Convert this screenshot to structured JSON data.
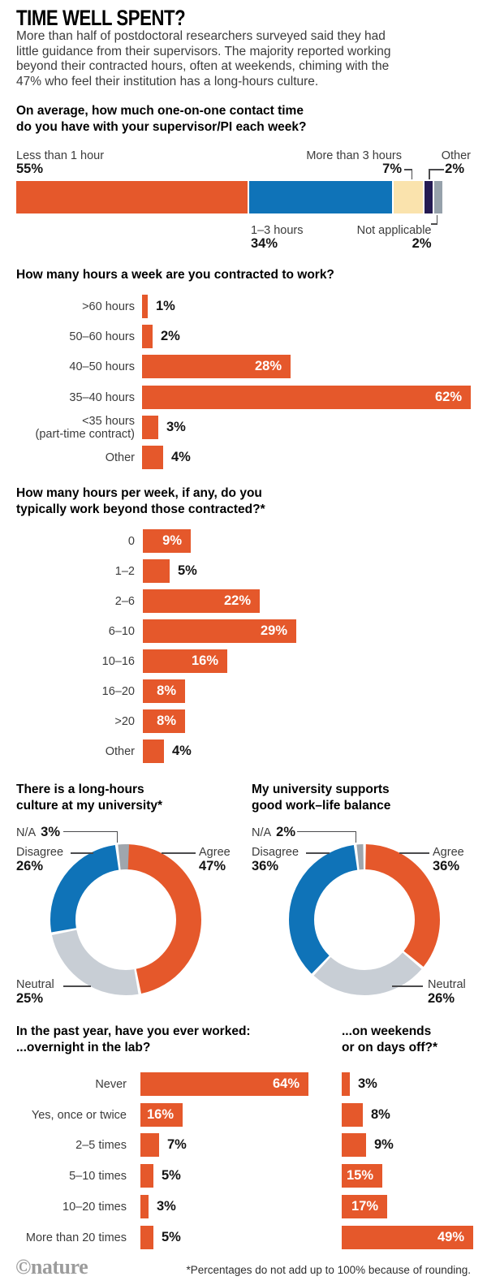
{
  "page": {
    "title": "TIME WELL SPENT?",
    "intro": "More than half of postdoctoral researchers surveyed said they had\nlittle guidance from their supervisors. The majority reported working\nbeyond their contracted hours, often at weekends, chiming with the\n47% who feel their institution has a long-hours culture.",
    "footnote": "*Percentages do not add up to 100% because of rounding.",
    "credit": "©nature"
  },
  "palette": {
    "orange": "#E5582B",
    "blue": "#0F73B8",
    "cream": "#FAE3AD",
    "navy": "#241A52",
    "slate": "#96A1AB",
    "neutral": "#C8CED5",
    "na": "#9FA6AD",
    "text_dark": "#141414",
    "body_text": "#3C3C3C",
    "connector_line": "#4B4B4D",
    "logo_gray": "#9C9C9C",
    "bar_value_inside": "#FFFFFF"
  },
  "chart_data": [
    {
      "id": "contact_time",
      "type": "stacked_bar",
      "title": "On average, how much one-on-one contact time\ndo you have with your supervisor/PI each week?",
      "categories": [
        "Less than 1 hour",
        "1–3 hours",
        "More than 3 hours",
        "Other",
        "Not applicable"
      ],
      "values": [
        55,
        34,
        7,
        2,
        2
      ],
      "pct_labels": [
        "55%",
        "34%",
        "7%",
        "2%",
        "2%"
      ],
      "color_keys": [
        "orange",
        "blue",
        "cream",
        "navy",
        "slate"
      ],
      "unit": "%",
      "xlim": [
        0,
        100
      ],
      "grid": false,
      "legend_position": "callouts"
    },
    {
      "id": "contracted",
      "type": "bar",
      "title": "How many hours a week are you contracted to work?",
      "categories": [
        ">60 hours",
        "50–60 hours",
        "40–50 hours",
        "35–40 hours",
        "<35 hours\n(part-time contract)",
        "Other"
      ],
      "values": [
        1,
        2,
        28,
        62,
        3,
        4
      ],
      "unit": "%",
      "grid": false,
      "value_labels_shown": true
    },
    {
      "id": "beyond",
      "type": "bar",
      "title": "How many hours per week, if any, do you\ntypically work beyond those contracted?*",
      "categories": [
        "0",
        "1–2",
        "2–6",
        "6–10",
        "10–16",
        "16–20",
        ">20",
        "Other"
      ],
      "values": [
        9,
        5,
        22,
        29,
        16,
        8,
        8,
        4
      ],
      "unit": "%",
      "grid": false,
      "value_labels_shown": true
    },
    {
      "id": "culture",
      "type": "pie",
      "title": "There is a long-hours\nculture at my university*",
      "categories": [
        "Agree",
        "Neutral",
        "Disagree",
        "N/A"
      ],
      "values": [
        47,
        25,
        26,
        3
      ],
      "pct_labels": [
        "47%",
        "25%",
        "26%",
        "3%"
      ],
      "color_keys": [
        "orange",
        "neutral",
        "blue",
        "na"
      ],
      "donut": true,
      "start_angle": "top",
      "direction": "clockwise",
      "legend_position": "callouts"
    },
    {
      "id": "balance",
      "type": "pie",
      "title": "My university supports\ngood work–life balance",
      "categories": [
        "Agree",
        "Neutral",
        "Disagree",
        "N/A"
      ],
      "values": [
        36,
        26,
        36,
        2
      ],
      "pct_labels": [
        "36%",
        "26%",
        "36%",
        "2%"
      ],
      "color_keys": [
        "orange",
        "neutral",
        "blue",
        "na"
      ],
      "donut": true,
      "start_angle": "top",
      "direction": "clockwise",
      "legend_position": "callouts"
    },
    {
      "id": "overnight",
      "type": "bar",
      "title": "In the past year, have you ever worked:\n...overnight in the lab?",
      "categories": [
        "Never",
        "Yes, once or twice",
        "2–5 times",
        "5–10 times",
        "10–20 times",
        "More than 20 times"
      ],
      "values": [
        64,
        16,
        7,
        5,
        3,
        5
      ],
      "unit": "%",
      "grid": false,
      "value_labels_shown": true
    },
    {
      "id": "weekends",
      "type": "bar",
      "title": "...on weekends\nor on days off?*",
      "categories": [
        "Never",
        "Yes, once or twice",
        "2–5 times",
        "5–10 times",
        "10–20 times",
        "More than 20 times"
      ],
      "values": [
        3,
        8,
        9,
        15,
        17,
        49
      ],
      "unit": "%",
      "grid": false,
      "value_labels_shown": true,
      "category_labels_shown": false
    }
  ]
}
